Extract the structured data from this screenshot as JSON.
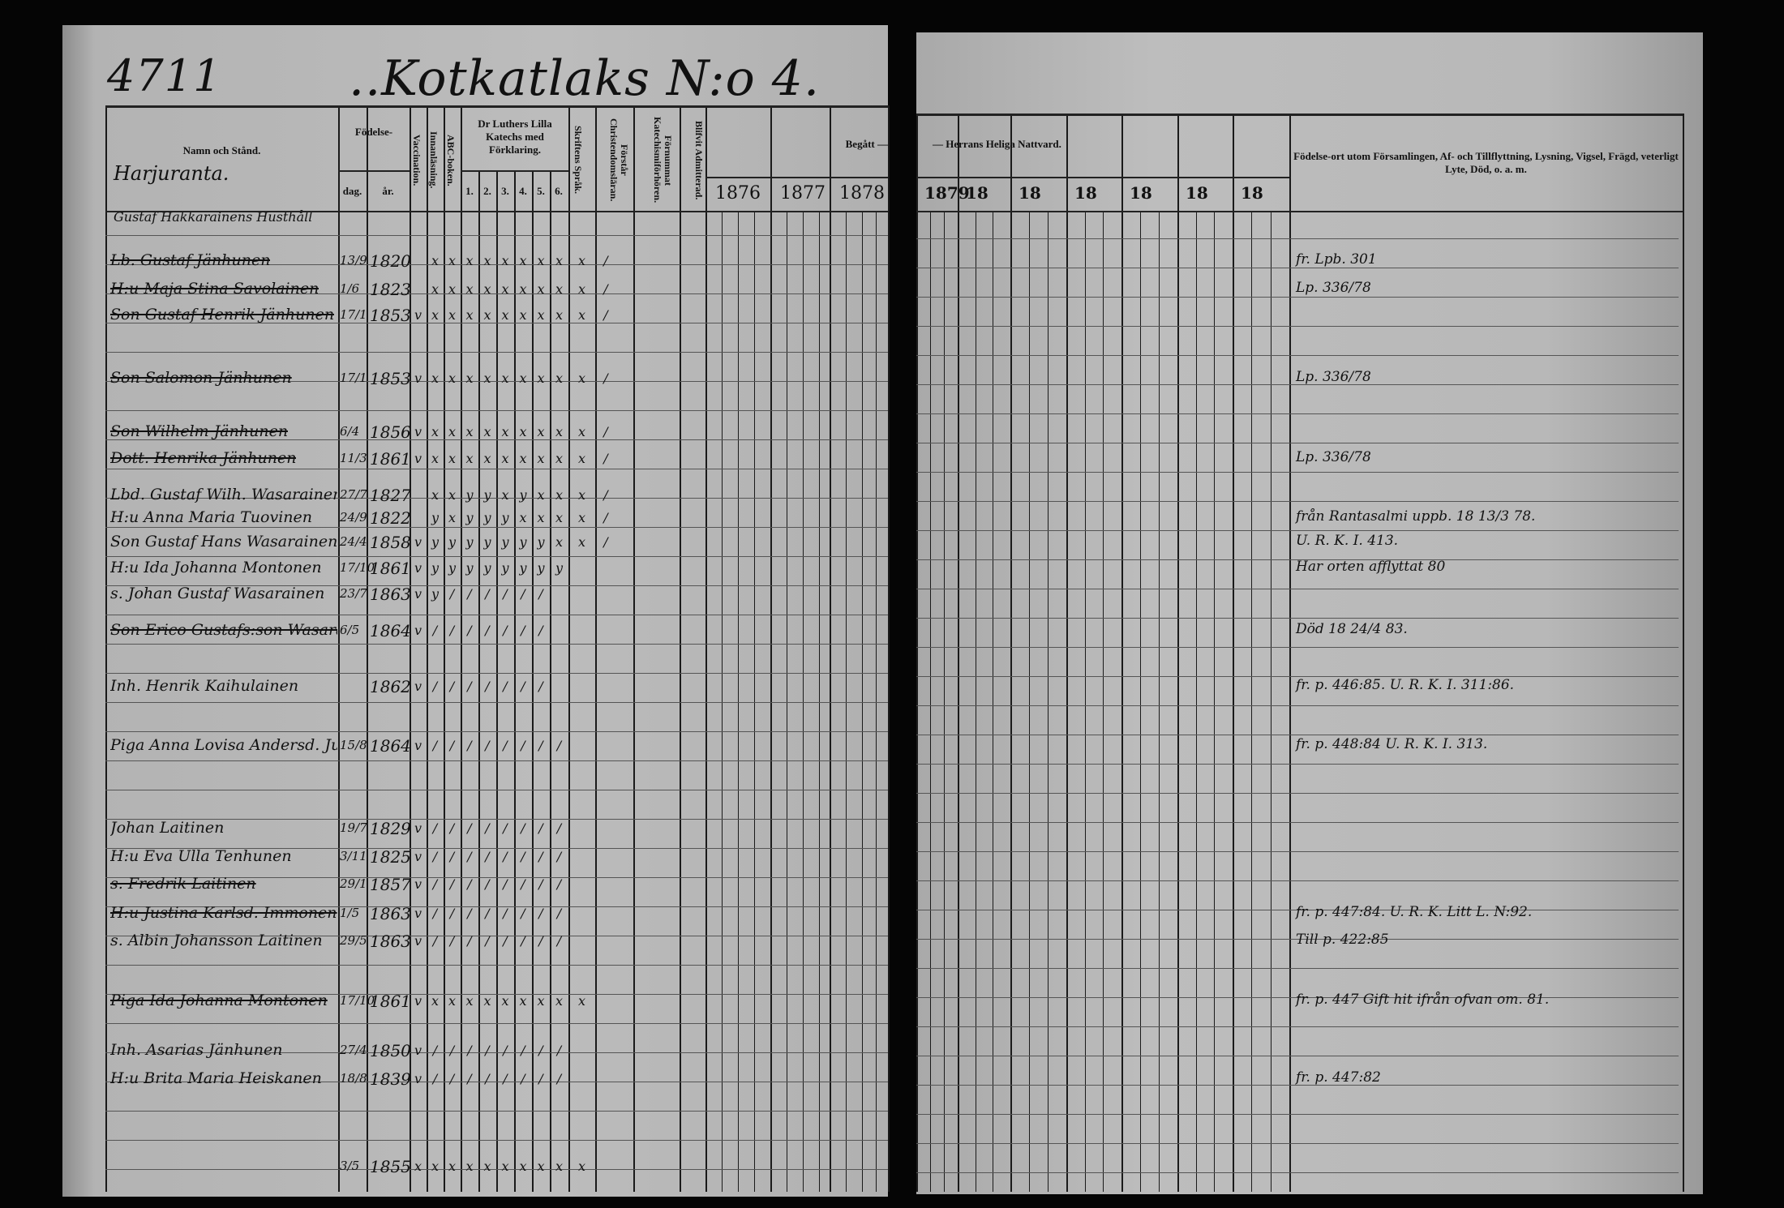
{
  "header": {
    "page_number": "4711",
    "village": "..Kotkatlaks N:o 4."
  },
  "left_headers": {
    "name": "Namn och Stånd.",
    "birth": "Födelse-",
    "day": "dag.",
    "year": "år.",
    "vaccination": "Vaccination.",
    "reading": "Innanläsning.",
    "abc": "ABC-boken.",
    "catechism": "Dr Luthers Lilla Katechs med Förklaring.",
    "catechism_parts": [
      "1.",
      "2.",
      "3.",
      "4.",
      "5.",
      "6."
    ],
    "scripture": "Skriftens Språk.",
    "understands": "Förstår Christendomsläran.",
    "heard": "Förnummat Katechismiförhören.",
    "admitted": "Blifvit Admitterad.",
    "communion_left": "Begått —",
    "years_left": [
      "1876",
      "1877",
      "1878"
    ]
  },
  "right_headers": {
    "communion_right": "— Herrans Heliga Nattvard.",
    "years_right": [
      "1879",
      "18",
      "18",
      "18",
      "18",
      "18",
      "18"
    ],
    "remarks": "Födelse-ort utom Församlingen, Af- och Tillflyttning, Lysning, Vigsel, Frägd, veterligt Lyte, Död, o. a. m."
  },
  "section_label": "Harjuranta.",
  "household": "Gustaf Hakkarainens Husthåll",
  "rows": [
    {
      "name": "Lb. Gustaf Jänhunen",
      "day": "13/9",
      "year": "1820",
      "struck": true,
      "marks": [
        "",
        "x",
        "x",
        "x",
        "x",
        "x",
        "x",
        "x",
        "x",
        "x",
        "/"
      ]
    },
    {
      "name": "H:u Maja Stina Savolainen",
      "day": "1/6",
      "year": "1823",
      "struck": true,
      "marks": [
        "",
        "x",
        "x",
        "x",
        "x",
        "x",
        "x",
        "x",
        "x",
        "x",
        "/"
      ]
    },
    {
      "name": "Son Gustaf Henrik Jänhunen",
      "day": "17/1",
      "year": "1853",
      "struck": true,
      "marks": [
        "v",
        "x",
        "x",
        "x",
        "x",
        "x",
        "x",
        "x",
        "x",
        "x",
        "/"
      ]
    },
    {
      "name": "Son Salomon Jänhunen",
      "day": "17/1",
      "year": "1853",
      "struck": true,
      "marks": [
        "v",
        "x",
        "x",
        "x",
        "x",
        "x",
        "x",
        "x",
        "x",
        "x",
        "/"
      ]
    },
    {
      "name": "Son Wilhelm Jänhunen",
      "day": "6/4",
      "year": "1856",
      "struck": true,
      "marks": [
        "v",
        "x",
        "x",
        "x",
        "x",
        "x",
        "x",
        "x",
        "x",
        "x",
        "/"
      ]
    },
    {
      "name": "Dott. Henrika Jänhunen",
      "day": "11/3",
      "year": "1861",
      "struck": true,
      "marks": [
        "v",
        "x",
        "x",
        "x",
        "x",
        "x",
        "x",
        "x",
        "x",
        "x",
        "/"
      ]
    },
    {
      "name": "Lbd. Gustaf Wilh. Wasarainen",
      "day": "27/7",
      "year": "1827",
      "struck": false,
      "marks": [
        "",
        "x",
        "x",
        "y",
        "y",
        "x",
        "y",
        "x",
        "x",
        "x",
        "/"
      ]
    },
    {
      "name": "H:u Anna Maria Tuovinen",
      "day": "24/9",
      "year": "1822",
      "struck": false,
      "marks": [
        "",
        "y",
        "x",
        "y",
        "y",
        "y",
        "x",
        "x",
        "x",
        "x",
        "/"
      ]
    },
    {
      "name": "Son Gustaf Hans Wasarainen",
      "day": "24/4",
      "year": "1858",
      "struck": false,
      "marks": [
        "v",
        "y",
        "y",
        "y",
        "y",
        "y",
        "y",
        "y",
        "x",
        "x",
        "/"
      ]
    },
    {
      "name": "H:u Ida Johanna Montonen",
      "day": "17/10",
      "year": "1861",
      "struck": false,
      "marks": [
        "v",
        "y",
        "y",
        "y",
        "y",
        "y",
        "y",
        "y",
        "y",
        "",
        ""
      ]
    },
    {
      "name": "s. Johan Gustaf Wasarainen",
      "day": "23/7",
      "year": "1863",
      "struck": false,
      "marks": [
        "v",
        "y",
        "/",
        "/",
        "/",
        "/",
        "/",
        "/",
        "",
        "",
        ""
      ]
    },
    {
      "name": "Son Erico Gustafs:son Wasarainen",
      "day": "6/5",
      "year": "1864",
      "struck": true,
      "marks": [
        "v",
        "/",
        "/",
        "/",
        "/",
        "/",
        "/",
        "/",
        "",
        "",
        ""
      ]
    },
    {
      "name": "Inh. Henrik Kaihulainen",
      "day": "",
      "year": "1862",
      "struck": false,
      "marks": [
        "v",
        "/",
        "/",
        "/",
        "/",
        "/",
        "/",
        "/",
        "",
        "",
        ""
      ]
    },
    {
      "name": "Piga Anna Lovisa Andersd. Juutilainen",
      "day": "15/8",
      "year": "1864",
      "struck": false,
      "marks": [
        "v",
        "/",
        "/",
        "/",
        "/",
        "/",
        "/",
        "/",
        "/",
        "",
        ""
      ]
    },
    {
      "name": "Johan Laitinen",
      "day": "19/7",
      "year": "1829",
      "struck": false,
      "marks": [
        "v",
        "/",
        "/",
        "/",
        "/",
        "/",
        "/",
        "/",
        "/",
        "",
        ""
      ]
    },
    {
      "name": "H:u Eva Ulla Tenhunen",
      "day": "3/11",
      "year": "1825",
      "struck": false,
      "marks": [
        "v",
        "/",
        "/",
        "/",
        "/",
        "/",
        "/",
        "/",
        "/",
        "",
        ""
      ]
    },
    {
      "name": "s. Fredrik Laitinen",
      "day": "29/1",
      "year": "1857",
      "struck": true,
      "marks": [
        "v",
        "/",
        "/",
        "/",
        "/",
        "/",
        "/",
        "/",
        "/",
        "",
        ""
      ]
    },
    {
      "name": "H:u Justina Karlsd. Immonen",
      "day": "1/5",
      "year": "1863",
      "struck": true,
      "marks": [
        "v",
        "/",
        "/",
        "/",
        "/",
        "/",
        "/",
        "/",
        "/",
        "",
        ""
      ]
    },
    {
      "name": "s. Albin Johansson Laitinen",
      "day": "29/5",
      "year": "1863",
      "struck": false,
      "marks": [
        "v",
        "/",
        "/",
        "/",
        "/",
        "/",
        "/",
        "/",
        "/",
        "",
        ""
      ]
    },
    {
      "name": "Piga Ida Johanna Montonen",
      "day": "17/10",
      "year": "1861",
      "struck": true,
      "marks": [
        "v",
        "x",
        "x",
        "x",
        "x",
        "x",
        "x",
        "x",
        "x",
        "x",
        ""
      ]
    },
    {
      "name": "Inh. Asarias Jänhunen",
      "day": "27/4",
      "year": "1850",
      "struck": false,
      "marks": [
        "v",
        "/",
        "/",
        "/",
        "/",
        "/",
        "/",
        "/",
        "/",
        "",
        ""
      ]
    },
    {
      "name": "H:u Brita Maria Heiskanen",
      "day": "18/8",
      "year": "1839",
      "struck": false,
      "marks": [
        "v",
        "/",
        "/",
        "/",
        "/",
        "/",
        "/",
        "/",
        "/",
        "",
        ""
      ]
    },
    {
      "name": "",
      "day": "3/5",
      "year": "1855",
      "struck": false,
      "marks": [
        "x",
        "x",
        "x",
        "x",
        "x",
        "x",
        "x",
        "x",
        "x",
        "x",
        ""
      ]
    }
  ],
  "notes": [
    {
      "row": 0,
      "text": "fr. Lpb. 301"
    },
    {
      "row": 1,
      "text": "Lp. 336/78"
    },
    {
      "row": 3,
      "text": "Lp. 336/78"
    },
    {
      "row": 5,
      "text": "Lp. 336/78"
    },
    {
      "row": 7,
      "text": "från Rantasalmi   uppb. 18 13/3 78."
    },
    {
      "row": 8,
      "text": "U. R. K. I. 413."
    },
    {
      "row": 9,
      "text": "Har orten afflyttat 80"
    },
    {
      "row": 11,
      "text": "Död 18 24/4 83."
    },
    {
      "row": 12,
      "text": "fr. p. 446:85. U. R. K. I. 311:86."
    },
    {
      "row": 13,
      "text": "fr. p. 448:84  U. R. K. I. 313."
    },
    {
      "row": 17,
      "text": "fr. p. 447:84. U. R. K. Litt L. N:92."
    },
    {
      "row": 18,
      "text": "Till p. 422:85"
    },
    {
      "row": 19,
      "text": "fr. p. 447 Gift hit ifrån ofvan om. 81."
    },
    {
      "row": 21,
      "text": "fr. p. 447:82"
    }
  ],
  "colors": {
    "paper": "#b9b9b9",
    "ink": "#111111",
    "background": "#050505"
  }
}
